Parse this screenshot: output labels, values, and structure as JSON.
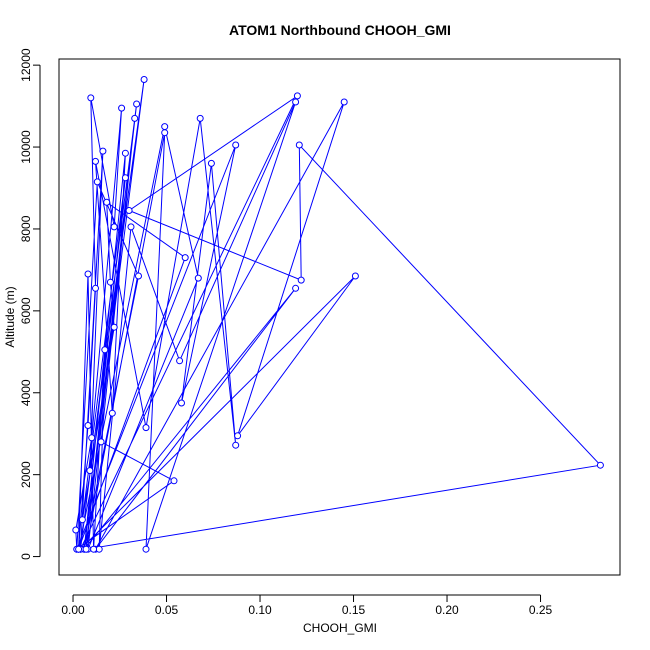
{
  "chart_data": {
    "type": "line",
    "title": "ATOM1 Northbound CHOOH_GMI",
    "xlabel": "CHOOH_GMI",
    "ylabel": "Altitude (m)",
    "xlim": [
      -0.0075,
      0.2925
    ],
    "ylim": [
      -450,
      12150
    ],
    "xticks": [
      0.0,
      0.05,
      0.1,
      0.15,
      0.2,
      0.25
    ],
    "xtick_labels": [
      "0.00",
      "0.05",
      "0.10",
      "0.15",
      "0.20",
      "0.25"
    ],
    "yticks": [
      0,
      2000,
      4000,
      6000,
      8000,
      10000,
      12000
    ],
    "ytick_labels": [
      "0",
      "2000",
      "4000",
      "6000",
      "8000",
      "10000",
      "12000"
    ],
    "grid": false,
    "legend": "none",
    "colors": {
      "series": "#0000ff"
    },
    "series": [
      {
        "points": [
          [
            0.003,
            180
          ],
          [
            0.008,
            3200
          ],
          [
            0.012,
            6550
          ],
          [
            0.0095,
            11200
          ],
          [
            0.022,
            8050
          ],
          [
            0.026,
            10950
          ],
          [
            0.01,
            2900
          ],
          [
            0.0015,
            650
          ],
          [
            0.002,
            180
          ],
          [
            0.013,
            9150
          ],
          [
            0.035,
            6850
          ],
          [
            0.006,
            180
          ],
          [
            0.038,
            11650
          ],
          [
            0.009,
            2100
          ],
          [
            0.016,
            9900
          ],
          [
            0.004,
            180
          ],
          [
            0.034,
            11050
          ],
          [
            0.007,
            180
          ],
          [
            0.028,
            9250
          ],
          [
            0.005,
            900
          ],
          [
            0.022,
            5600
          ],
          [
            0.02,
            6700
          ],
          [
            0.018,
            8650
          ],
          [
            0.06,
            7300
          ],
          [
            0.003,
            180
          ],
          [
            0.049,
            10500
          ],
          [
            0.067,
            6800
          ],
          [
            0.008,
            180
          ],
          [
            0.033,
            10700
          ],
          [
            0.015,
            2800
          ],
          [
            0.054,
            1850
          ],
          [
            0.002,
            180
          ],
          [
            0.087,
            10050
          ],
          [
            0.058,
            3750
          ],
          [
            0.074,
            9600
          ],
          [
            0.087,
            2720
          ],
          [
            0.068,
            10700
          ],
          [
            0.039,
            3150
          ],
          [
            0.012,
            9650
          ],
          [
            0.021,
            3500
          ],
          [
            0.028,
            9850
          ],
          [
            0.006,
            180
          ],
          [
            0.119,
            6550
          ],
          [
            0.012,
            180
          ],
          [
            0.145,
            11100
          ],
          [
            0.088,
            2950
          ],
          [
            0.151,
            6850
          ],
          [
            0.004,
            180
          ],
          [
            0.12,
            11250
          ],
          [
            0.03,
            8450
          ],
          [
            0.122,
            6750
          ],
          [
            0.121,
            10050
          ],
          [
            0.282,
            2230
          ],
          [
            0.007,
            180
          ],
          [
            0.049,
            10350
          ],
          [
            0.039,
            180
          ],
          [
            0.119,
            11100
          ],
          [
            0.057,
            4780
          ],
          [
            0.031,
            8050
          ],
          [
            0.014,
            180
          ],
          [
            0.017,
            5050
          ],
          [
            0.011,
            180
          ],
          [
            0.008,
            6900
          ],
          [
            0.003,
            180
          ]
        ]
      }
    ]
  }
}
